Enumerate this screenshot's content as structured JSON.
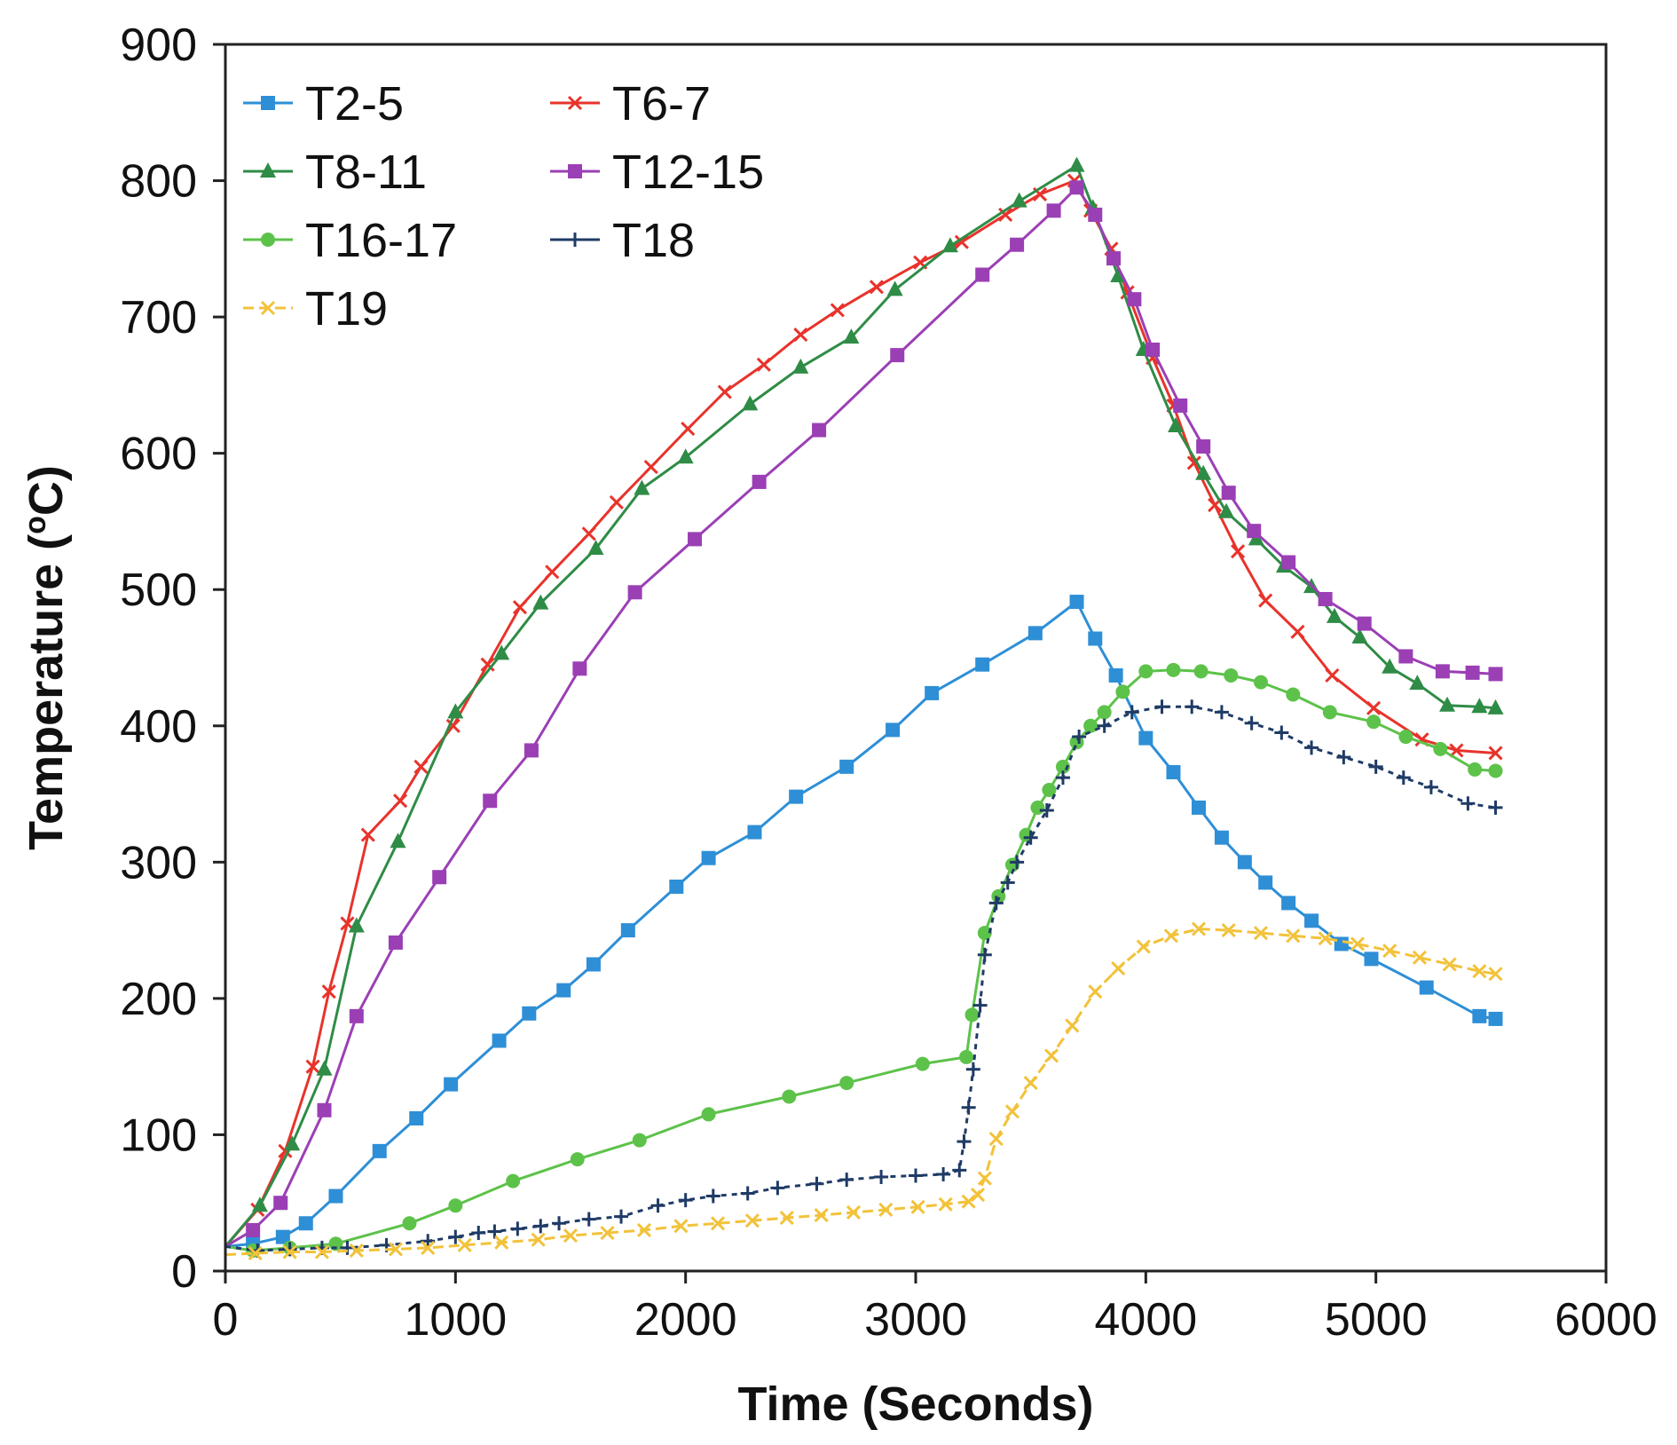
{
  "chart_data": {
    "type": "line",
    "title": "",
    "xlabel": "Time (Seconds)",
    "ylabel_main": "Temperature (",
    "ylabel_sup": "o",
    "ylabel_tail": "C)",
    "xlim": [
      0,
      6000
    ],
    "ylim": [
      0,
      900
    ],
    "xticks": [
      0,
      1000,
      2000,
      3000,
      4000,
      5000,
      6000
    ],
    "yticks": [
      0,
      100,
      200,
      300,
      400,
      500,
      600,
      700,
      800,
      900
    ],
    "legend_position": "top-left",
    "series": [
      {
        "name": "T2-5",
        "color": "#2e8fd6",
        "marker": "square",
        "x": [
          0,
          120,
          250,
          350,
          480,
          670,
          830,
          980,
          1190,
          1320,
          1470,
          1600,
          1750,
          1960,
          2100,
          2300,
          2480,
          2700,
          2900,
          3070,
          3290,
          3520,
          3700,
          3780,
          3870,
          4000,
          4120,
          4230,
          4330,
          4430,
          4520,
          4620,
          4720,
          4850,
          4980,
          5220,
          5450,
          5520
        ],
        "y": [
          18,
          20,
          25,
          35,
          55,
          88,
          112,
          137,
          169,
          189,
          206,
          225,
          250,
          282,
          303,
          322,
          348,
          370,
          397,
          424,
          445,
          468,
          491,
          464,
          437,
          391,
          366,
          340,
          318,
          300,
          285,
          270,
          257,
          240,
          229,
          208,
          187,
          185
        ]
      },
      {
        "name": "T6-7",
        "color": "#e8332b",
        "marker": "x",
        "x": [
          0,
          140,
          260,
          380,
          450,
          530,
          620,
          760,
          850,
          990,
          1140,
          1280,
          1420,
          1580,
          1700,
          1850,
          2010,
          2170,
          2340,
          2500,
          2660,
          2830,
          3020,
          3200,
          3390,
          3540,
          3690,
          3760,
          3850,
          3920,
          4030,
          4120,
          4210,
          4300,
          4400,
          4520,
          4660,
          4810,
          4990,
          5200,
          5350,
          5520
        ],
        "y": [
          18,
          45,
          88,
          150,
          205,
          255,
          320,
          345,
          370,
          400,
          445,
          487,
          513,
          541,
          564,
          590,
          618,
          645,
          665,
          687,
          705,
          722,
          740,
          755,
          775,
          790,
          800,
          778,
          750,
          718,
          670,
          635,
          593,
          562,
          528,
          492,
          469,
          437,
          413,
          390,
          382,
          380
        ]
      },
      {
        "name": "T8-11",
        "color": "#2f8c46",
        "marker": "triangle",
        "x": [
          0,
          150,
          290,
          430,
          570,
          750,
          1000,
          1200,
          1370,
          1610,
          1810,
          2000,
          2280,
          2500,
          2720,
          2910,
          3150,
          3450,
          3700,
          3770,
          3880,
          3990,
          4130,
          4250,
          4350,
          4480,
          4600,
          4720,
          4820,
          4930,
          5060,
          5180,
          5310,
          5450,
          5520
        ],
        "y": [
          18,
          48,
          93,
          148,
          253,
          315,
          410,
          453,
          490,
          530,
          574,
          597,
          636,
          663,
          685,
          720,
          752,
          785,
          811,
          780,
          730,
          676,
          620,
          585,
          557,
          537,
          517,
          502,
          480,
          465,
          443,
          431,
          415,
          414,
          413
        ]
      },
      {
        "name": "T12-15",
        "color": "#9b3fb5",
        "marker": "square",
        "x": [
          0,
          120,
          240,
          430,
          570,
          740,
          930,
          1150,
          1330,
          1540,
          1780,
          2040,
          2320,
          2580,
          2920,
          3290,
          3440,
          3600,
          3700,
          3780,
          3860,
          3950,
          4030,
          4150,
          4250,
          4360,
          4470,
          4620,
          4780,
          4950,
          5130,
          5290,
          5420,
          5520
        ],
        "y": [
          18,
          30,
          50,
          118,
          187,
          241,
          289,
          345,
          382,
          442,
          498,
          537,
          579,
          617,
          672,
          731,
          753,
          778,
          795,
          775,
          743,
          713,
          676,
          635,
          605,
          571,
          543,
          520,
          493,
          475,
          451,
          440,
          439,
          438
        ]
      },
      {
        "name": "T16-17",
        "color": "#5dc24a",
        "marker": "circle",
        "x": [
          0,
          120,
          280,
          480,
          800,
          1000,
          1250,
          1530,
          1800,
          2100,
          2450,
          2700,
          3030,
          3220,
          3245,
          3300,
          3360,
          3420,
          3480,
          3530,
          3580,
          3640,
          3700,
          3760,
          3820,
          3900,
          4000,
          4120,
          4240,
          4370,
          4500,
          4640,
          4800,
          4990,
          5130,
          5280,
          5430,
          5520
        ],
        "y": [
          18,
          15,
          17,
          20,
          35,
          48,
          66,
          82,
          96,
          115,
          128,
          138,
          152,
          157,
          188,
          248,
          275,
          298,
          320,
          340,
          353,
          370,
          388,
          400,
          410,
          425,
          440,
          441,
          440,
          437,
          432,
          423,
          410,
          403,
          392,
          383,
          368,
          367
        ]
      },
      {
        "name": "T18",
        "color": "#1f3b66",
        "marker": "plus",
        "x": [
          0,
          140,
          280,
          420,
          530,
          700,
          880,
          1000,
          1100,
          1170,
          1270,
          1370,
          1450,
          1580,
          1720,
          1880,
          2000,
          2120,
          2270,
          2400,
          2570,
          2700,
          2850,
          3000,
          3120,
          3190,
          3210,
          3230,
          3250,
          3280,
          3300,
          3350,
          3400,
          3440,
          3500,
          3570,
          3640,
          3710,
          3820,
          3940,
          4070,
          4200,
          4330,
          4460,
          4590,
          4720,
          4860,
          5000,
          5120,
          5240,
          5400,
          5520
        ],
        "y": [
          18,
          15,
          16,
          17,
          17,
          19,
          22,
          25,
          28,
          29,
          31,
          33,
          35,
          38,
          40,
          48,
          52,
          55,
          57,
          61,
          64,
          67,
          69,
          70,
          71,
          74,
          95,
          120,
          148,
          195,
          232,
          270,
          285,
          300,
          318,
          338,
          362,
          392,
          400,
          410,
          414,
          414,
          410,
          402,
          395,
          384,
          377,
          370,
          362,
          355,
          343,
          340
        ]
      },
      {
        "name": "T19",
        "color": "#f2c23a",
        "marker": "x",
        "x": [
          0,
          130,
          280,
          420,
          570,
          740,
          880,
          1040,
          1200,
          1360,
          1500,
          1660,
          1820,
          1980,
          2140,
          2290,
          2440,
          2590,
          2730,
          2870,
          3010,
          3130,
          3230,
          3270,
          3300,
          3350,
          3420,
          3500,
          3590,
          3680,
          3780,
          3880,
          3990,
          4110,
          4230,
          4360,
          4500,
          4640,
          4780,
          4920,
          5060,
          5190,
          5320,
          5450,
          5520
        ],
        "y": [
          12,
          13,
          14,
          14,
          15,
          16,
          17,
          19,
          21,
          23,
          26,
          28,
          30,
          33,
          35,
          37,
          39,
          41,
          43,
          45,
          47,
          49,
          51,
          56,
          68,
          97,
          117,
          138,
          158,
          180,
          205,
          222,
          238,
          246,
          251,
          250,
          248,
          246,
          244,
          240,
          235,
          230,
          225,
          220,
          218
        ]
      }
    ]
  }
}
